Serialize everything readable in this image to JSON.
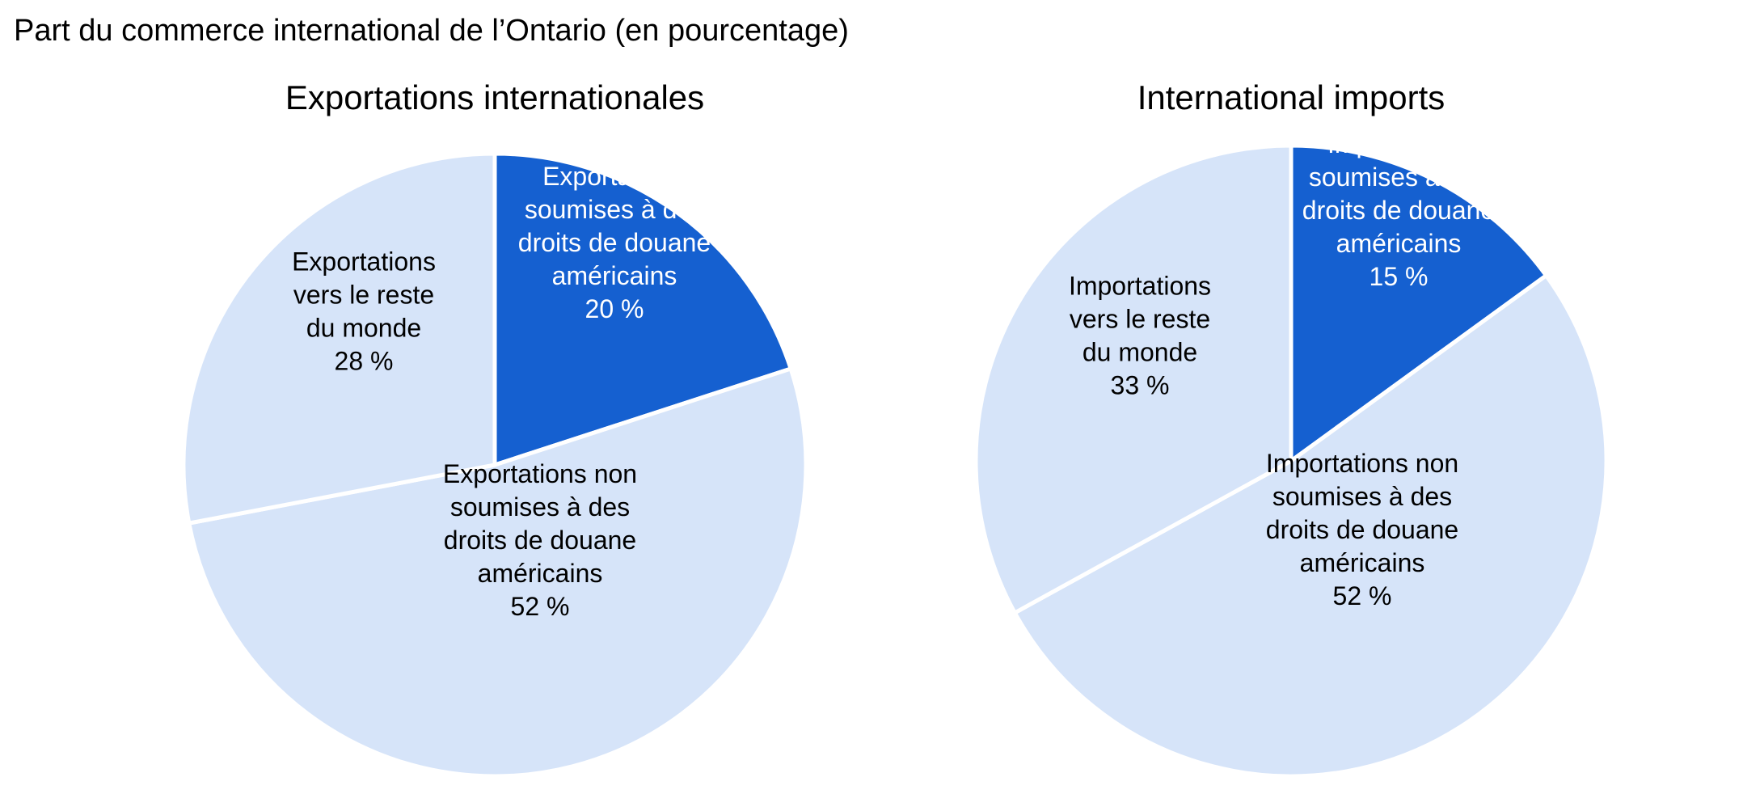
{
  "title": "Part du commerce international de l’Ontario (en pourcentage)",
  "chart_data": [
    {
      "type": "pie",
      "title": "Exportations internationales",
      "slices": [
        {
          "label_lines": [
            "Exportations",
            "soumises à des",
            "droits de douane",
            "américains"
          ],
          "value_label": "20 %",
          "value": 20,
          "color": "#1560d0",
          "text_color": "#ffffff"
        },
        {
          "label_lines": [
            "Exportations non",
            "soumises à des",
            "droits de douane",
            "américains"
          ],
          "value_label": "52 %",
          "value": 52,
          "color": "#d6e4f9",
          "text_color": "#000000"
        },
        {
          "label_lines": [
            "Exportations",
            "vers le reste",
            "du monde"
          ],
          "value_label": "28 %",
          "value": 28,
          "color": "#d6e4f9",
          "text_color": "#000000"
        }
      ]
    },
    {
      "type": "pie",
      "title": "International imports",
      "slices": [
        {
          "label_lines": [
            "Importations",
            "soumises à des",
            "droits de douane",
            "américains"
          ],
          "value_label": "15 %",
          "value": 15,
          "color": "#1560d0",
          "text_color": "#ffffff"
        },
        {
          "label_lines": [
            "Importations non",
            "soumises à des",
            "droits de douane",
            "américains"
          ],
          "value_label": "52 %",
          "value": 52,
          "color": "#d6e4f9",
          "text_color": "#000000"
        },
        {
          "label_lines": [
            "Importations",
            "vers le reste",
            "du monde"
          ],
          "value_label": "33 %",
          "value": 33,
          "color": "#d6e4f9",
          "text_color": "#000000"
        }
      ]
    }
  ]
}
